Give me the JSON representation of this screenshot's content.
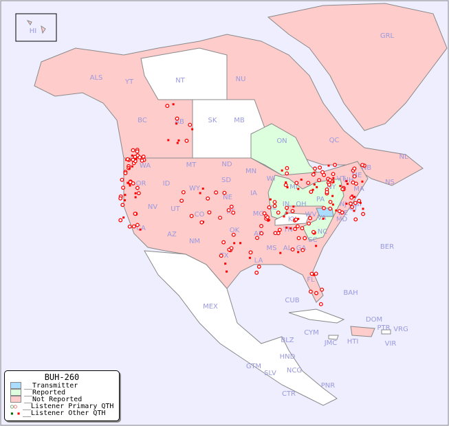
{
  "legend": {
    "title": "BUH-260",
    "items": [
      {
        "label": "__Transmitter",
        "color": "#aaddff"
      },
      {
        "label": "__Reported",
        "color": "#ddffdd"
      },
      {
        "label": "__Not Reported",
        "color": "#ffcccc"
      },
      {
        "label": "__Listener Primary QTH",
        "marker": "open-circle",
        "colors": [
          "#006600",
          "#ff0000"
        ]
      },
      {
        "label": "__Listener Other QTH",
        "marker": "filled-square",
        "colors": [
          "#006600",
          "#ff0000"
        ]
      }
    ]
  },
  "colors": {
    "ocean": "#eeeeff",
    "not_reported": "#ffcccc",
    "reported": "#ddffdd",
    "transmitter": "#aaddff",
    "no_data": "#ffffff",
    "border": "#888888",
    "label": "#9999dd",
    "listener": "#ff0000"
  },
  "regions": {
    "not_reported": [
      "ALS",
      "YT",
      "NU",
      "BC",
      "AB",
      "QC",
      "NL",
      "NB",
      "NS",
      "GRL",
      "HI",
      "WA",
      "OR",
      "ID",
      "MT",
      "WY",
      "NV",
      "UT",
      "CO",
      "CA",
      "AZ",
      "NM",
      "TX",
      "SD",
      "NE",
      "KS",
      "OK",
      "MN",
      "IA",
      "MO",
      "AR",
      "LA",
      "MS",
      "AL",
      "GA",
      "FL",
      "SC",
      "TN",
      "WI",
      "IN",
      "OH",
      "WV",
      "KY",
      "ME",
      "MA",
      "CT",
      "RI",
      "NJ",
      "DE"
    ],
    "reported": [
      "ON",
      "IL",
      "MI",
      "NY",
      "PA",
      "VA",
      "NC"
    ],
    "transmitter": [
      "MD"
    ],
    "no_data": [
      "NT",
      "SK",
      "MB",
      "ND",
      "MEX"
    ]
  },
  "labels": [
    "HI",
    "ALS",
    "YT",
    "NT",
    "NU",
    "GRL",
    "BC",
    "AB",
    "SK",
    "MB",
    "ON",
    "QC",
    "NL",
    "NB",
    "NS",
    "WA",
    "OR",
    "ID",
    "MT",
    "WY",
    "ND",
    "SD",
    "NE",
    "MN",
    "WI",
    "IA",
    "IL",
    "IN",
    "MI",
    "OH",
    "PA",
    "NY",
    "VT",
    "NH",
    "ME",
    "MA",
    "CT",
    "RI",
    "NJ",
    "DE",
    "MD",
    "WV",
    "VA",
    "KY",
    "TN",
    "NC",
    "SC",
    "GA",
    "AL",
    "MS",
    "LA",
    "AR",
    "MO",
    "KS",
    "OK",
    "TX",
    "NM",
    "AZ",
    "UT",
    "NV",
    "CA",
    "CO",
    "FL",
    "BER",
    "BAH",
    "CUB",
    "DOM",
    "PTR",
    "VRG",
    "VIR",
    "HTI",
    "JMC",
    "CYM",
    "BLZ",
    "HND",
    "GTM",
    "SLV",
    "NCG",
    "CTR",
    "PNR",
    "MEX"
  ]
}
